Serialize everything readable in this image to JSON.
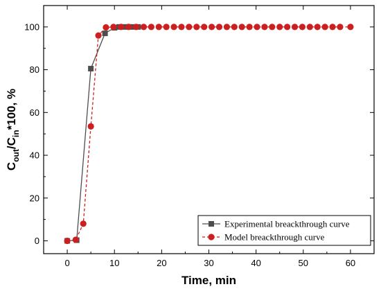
{
  "chart_data": {
    "type": "line",
    "xlabel": "Time, min",
    "ylabel": {
      "base1": "C",
      "sub1": "out",
      "slash": "/C",
      "sub2": "in",
      "tail": "*100, %"
    },
    "xlim": [
      -5,
      65
    ],
    "ylim": [
      -6,
      110
    ],
    "xticks": [
      0,
      10,
      20,
      30,
      40,
      50,
      60
    ],
    "yticks": [
      0,
      20,
      40,
      60,
      80,
      100
    ],
    "legend_position": "bottom-right",
    "series": [
      {
        "name": "Experimental breackthrough curve",
        "style": "solid",
        "marker": "square",
        "color": "#4d4d4d",
        "points": [
          [
            0,
            0
          ],
          [
            2,
            0.3
          ],
          [
            5,
            80.5
          ],
          [
            8,
            97
          ],
          [
            10,
            99.6
          ],
          [
            11,
            100
          ],
          [
            12,
            100
          ],
          [
            13,
            100
          ],
          [
            14,
            100
          ],
          [
            15,
            100
          ]
        ]
      },
      {
        "name": "Model breackthrough curve",
        "style": "dashed",
        "marker": "circle",
        "color": "#cc1f1f",
        "points": [
          [
            0,
            0
          ],
          [
            1.8,
            0.5
          ],
          [
            3.4,
            8
          ],
          [
            5,
            53.5
          ],
          [
            6.6,
            96
          ],
          [
            8.2,
            99.8
          ],
          [
            9.8,
            100
          ],
          [
            11.4,
            100
          ],
          [
            13,
            100
          ],
          [
            14.6,
            100
          ],
          [
            16.2,
            100
          ],
          [
            17.8,
            100
          ],
          [
            19.4,
            100
          ],
          [
            21,
            100
          ],
          [
            22.6,
            100
          ],
          [
            24.2,
            100
          ],
          [
            25.8,
            100
          ],
          [
            27.4,
            100
          ],
          [
            29,
            100
          ],
          [
            30.6,
            100
          ],
          [
            32.2,
            100
          ],
          [
            33.8,
            100
          ],
          [
            35.4,
            100
          ],
          [
            37,
            100
          ],
          [
            38.6,
            100
          ],
          [
            40.2,
            100
          ],
          [
            41.8,
            100
          ],
          [
            43.4,
            100
          ],
          [
            45,
            100
          ],
          [
            46.6,
            100
          ],
          [
            48.2,
            100
          ],
          [
            49.8,
            100
          ],
          [
            51.4,
            100
          ],
          [
            53,
            100
          ],
          [
            54.6,
            100
          ],
          [
            56.2,
            100
          ],
          [
            57.8,
            100
          ],
          [
            60,
            100
          ]
        ]
      }
    ]
  }
}
